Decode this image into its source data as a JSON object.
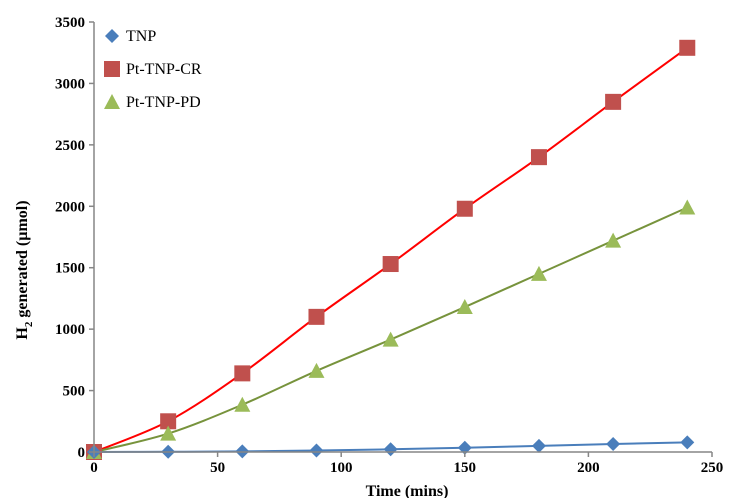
{
  "chart_data": {
    "type": "scatter",
    "title": "",
    "xlabel": "Time (mins)",
    "ylabel_main": "H",
    "ylabel_sub": "2",
    "ylabel_rest": " generated (µmol)",
    "xlim": [
      0,
      250
    ],
    "ylim": [
      0,
      3500
    ],
    "xticks": [
      0,
      50,
      100,
      150,
      200,
      250
    ],
    "yticks": [
      0,
      500,
      1000,
      1500,
      2000,
      2500,
      3000,
      3500
    ],
    "grid": false,
    "legend_position": "top-left",
    "x": [
      0,
      30,
      60,
      90,
      120,
      150,
      180,
      210,
      240
    ],
    "series": [
      {
        "name": "TNP",
        "marker": "diamond",
        "color": "#4a7ebb",
        "line_color": "#4a7ebb",
        "values": [
          0,
          2,
          5,
          12,
          22,
          35,
          50,
          65,
          78
        ]
      },
      {
        "name": "Pt-TNP-CR",
        "marker": "square",
        "color": "#c0504d",
        "line_color": "#ff0000",
        "values": [
          0,
          250,
          640,
          1100,
          1530,
          1980,
          2400,
          2850,
          3290
        ]
      },
      {
        "name": "Pt-TNP-PD",
        "marker": "triangle",
        "color": "#9bbb59",
        "line_color": "#77933c",
        "values": [
          0,
          150,
          385,
          660,
          915,
          1180,
          1450,
          1720,
          1990
        ]
      }
    ]
  }
}
